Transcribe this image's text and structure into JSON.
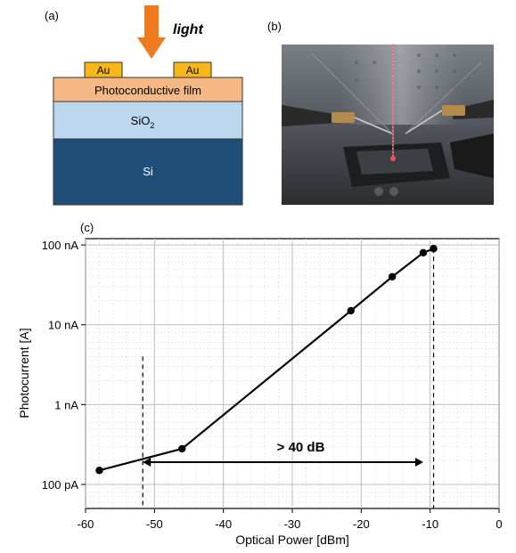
{
  "panel_a": {
    "label": "(a)",
    "light_label": "light",
    "electrode_left": "Au",
    "electrode_right": "Au",
    "film_label": "Photoconductive film",
    "oxide_label": "SiO",
    "oxide_subscript": "2",
    "substrate_label": "Si",
    "colors": {
      "arrow": "#f07b1e",
      "gold": "#f7b718",
      "film": "#f6b985",
      "oxide": "#bcd7ee",
      "silicon": "#1f4e79"
    }
  },
  "panel_b": {
    "label": "(b)",
    "image": "photo of probe station with red laser beam hitting sample"
  },
  "chart_data": {
    "label": "(c)",
    "type": "line",
    "xlabel": "Optical Power [dBm]",
    "ylabel": "Photocurrent [A]",
    "xlim": [
      -60,
      0
    ],
    "ylim": [
      5e-11,
      1.2e-07
    ],
    "yscale": "log",
    "x_ticks": [
      "-60",
      "-50",
      "-40",
      "-30",
      "-20",
      "-10",
      "0"
    ],
    "x_tick_values": [
      -60,
      -50,
      -40,
      -30,
      -20,
      -10,
      0
    ],
    "y_ticks": [
      "100 pA",
      "1 nA",
      "10 nA",
      "100 nA"
    ],
    "y_tick_values": [
      1e-10,
      1e-09,
      1e-08,
      1e-07
    ],
    "grid": true,
    "series": [
      {
        "x": [
          -58,
          -46,
          -21.5,
          -15.5,
          -11,
          -9.5
        ],
        "y": [
          1.5e-10,
          2.8e-10,
          1.5e-08,
          4e-08,
          8e-08,
          9e-08
        ]
      }
    ],
    "dashed_lines_x": [
      -51.7,
      -9.5
    ],
    "dashed_line_top_y": [
      4e-09,
      9e-08
    ],
    "range_arrow": {
      "x_start": -51.7,
      "x_end": -11,
      "y": 1.9e-10,
      "text": "> 40 dB"
    },
    "line_color": "#000000"
  }
}
